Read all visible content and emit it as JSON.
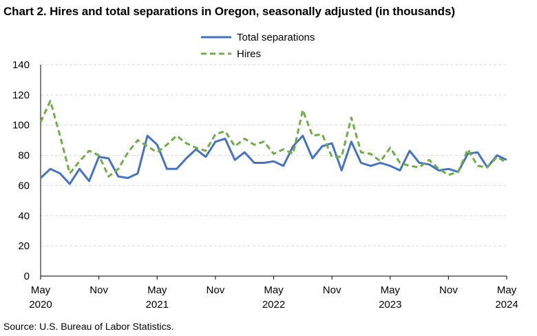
{
  "title": "Chart 2. Hires and total separations in Oregon, seasonally adjusted (in thousands)",
  "source": "Source: U.S. Bureau of Labor Statistics.",
  "chart_data": {
    "type": "line",
    "title": "Chart 2. Hires and total separations in Oregon, seasonally adjusted (in thousands)",
    "xlabel": "",
    "ylabel": "",
    "ylim": [
      0,
      140
    ],
    "yticks": [
      0,
      20,
      40,
      60,
      80,
      100,
      120,
      140
    ],
    "grid": true,
    "legend_position": "top",
    "x_tick_labels": [
      {
        "month": "May",
        "year": "2020"
      },
      {
        "month": "Nov",
        "year": ""
      },
      {
        "month": "May",
        "year": "2021"
      },
      {
        "month": "Nov",
        "year": ""
      },
      {
        "month": "May",
        "year": "2022"
      },
      {
        "month": "Nov",
        "year": ""
      },
      {
        "month": "May",
        "year": "2023"
      },
      {
        "month": "Nov",
        "year": ""
      },
      {
        "month": "May",
        "year": "2024"
      }
    ],
    "x": [
      "2020-05",
      "2020-06",
      "2020-07",
      "2020-08",
      "2020-09",
      "2020-10",
      "2020-11",
      "2020-12",
      "2021-01",
      "2021-02",
      "2021-03",
      "2021-04",
      "2021-05",
      "2021-06",
      "2021-07",
      "2021-08",
      "2021-09",
      "2021-10",
      "2021-11",
      "2021-12",
      "2022-01",
      "2022-02",
      "2022-03",
      "2022-04",
      "2022-05",
      "2022-06",
      "2022-07",
      "2022-08",
      "2022-09",
      "2022-10",
      "2022-11",
      "2022-12",
      "2023-01",
      "2023-02",
      "2023-03",
      "2023-04",
      "2023-05",
      "2023-06",
      "2023-07",
      "2023-08",
      "2023-09",
      "2023-10",
      "2023-11",
      "2023-12",
      "2024-01",
      "2024-02",
      "2024-03",
      "2024-04",
      "2024-05"
    ],
    "series": [
      {
        "name": "Total separations",
        "color": "#4472c4",
        "style": "solid",
        "values": [
          65,
          71,
          68,
          61,
          71,
          63,
          79,
          78,
          66,
          65,
          68,
          93,
          87,
          71,
          71,
          78,
          84,
          79,
          89,
          91,
          77,
          82,
          75,
          75,
          76,
          73,
          86,
          93,
          78,
          86,
          88,
          70,
          89,
          75,
          73,
          75,
          73,
          70,
          83,
          75,
          74,
          70,
          71,
          69,
          81,
          82,
          72,
          80,
          77
        ]
      },
      {
        "name": "Hires",
        "color": "#70ad47",
        "style": "dashed",
        "values": [
          102,
          116,
          93,
          68,
          76,
          83,
          80,
          66,
          71,
          82,
          90,
          86,
          82,
          87,
          93,
          88,
          85,
          83,
          94,
          96,
          86,
          91,
          87,
          89,
          81,
          84,
          81,
          110,
          93,
          94,
          79,
          79,
          105,
          82,
          81,
          76,
          85,
          75,
          73,
          72,
          77,
          71,
          67,
          69,
          84,
          73,
          72,
          79,
          75
        ]
      }
    ]
  }
}
